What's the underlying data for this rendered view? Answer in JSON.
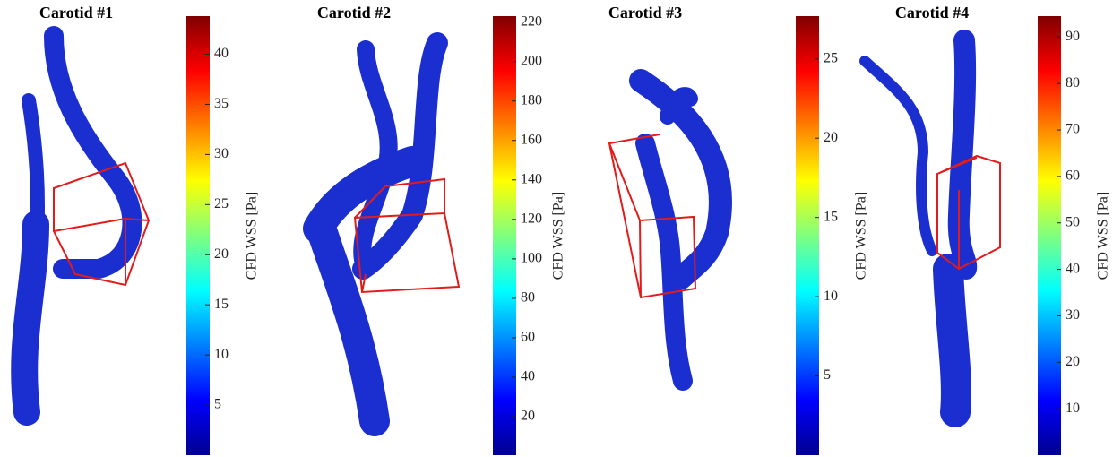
{
  "chart_data": [
    {
      "type": "colorbar",
      "title": "Carotid #1",
      "label": "CFD WSS [Pa]",
      "colormap": "jet",
      "ylim": [
        0,
        43.8
      ],
      "yticks": [
        5,
        10,
        15,
        20,
        25,
        30,
        35,
        40
      ]
    },
    {
      "type": "colorbar",
      "title": "Carotid #2",
      "label": "CFD WSS [Pa]",
      "colormap": "jet",
      "ylim": [
        0.5,
        223
      ],
      "yticks": [
        20,
        40,
        60,
        80,
        100,
        120,
        140,
        160,
        180,
        200,
        220
      ]
    },
    {
      "type": "colorbar",
      "title": "Carotid #3",
      "label": "CFD WSS [Pa]",
      "colormap": "jet",
      "ylim": [
        0,
        27.7
      ],
      "yticks": [
        5,
        10,
        15,
        20,
        25
      ]
    },
    {
      "type": "colorbar",
      "title": "Carotid #4",
      "label": "CFD WSS [Pa]",
      "colormap": "jet",
      "ylim": [
        0,
        94.5
      ],
      "yticks": [
        10,
        20,
        30,
        40,
        50,
        60,
        70,
        80,
        90
      ]
    }
  ]
}
